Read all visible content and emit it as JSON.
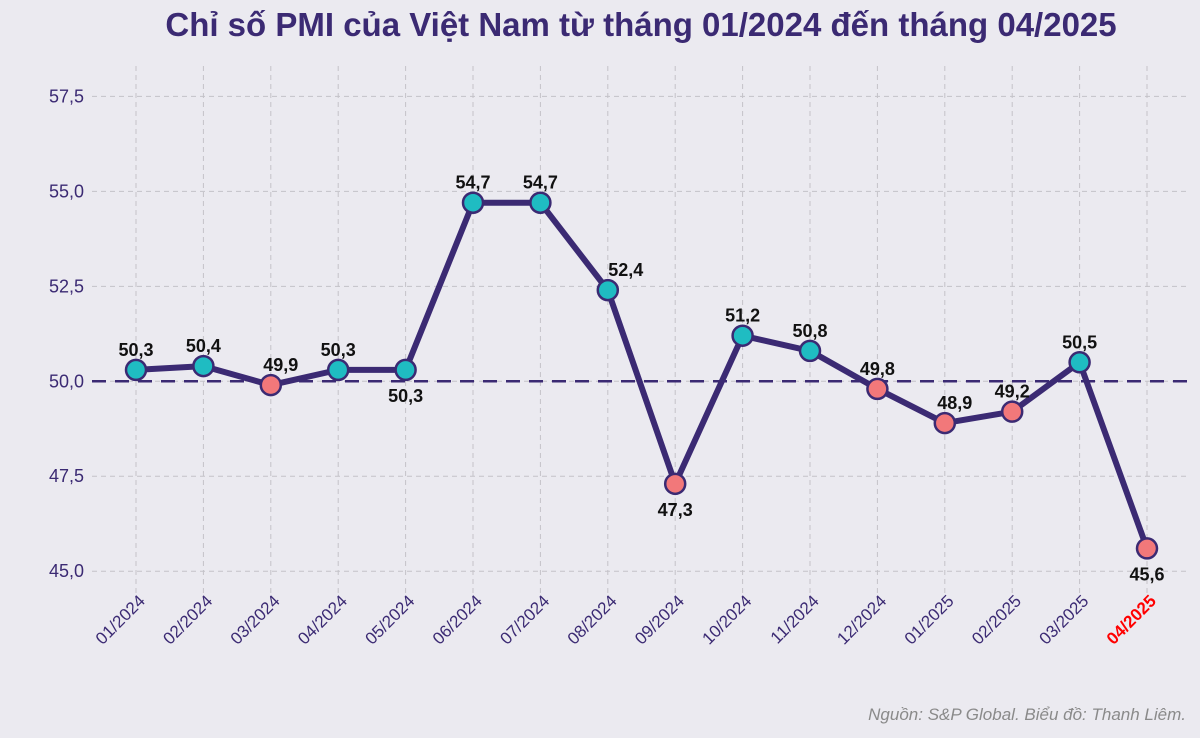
{
  "chart_data": {
    "type": "line",
    "title": "Chỉ số PMI của Việt Nam từ tháng 01/2024 đến tháng 04/2025",
    "categories": [
      "01/2024",
      "02/2024",
      "03/2024",
      "04/2024",
      "05/2024",
      "06/2024",
      "07/2024",
      "08/2024",
      "09/2024",
      "10/2024",
      "11/2024",
      "12/2024",
      "01/2025",
      "02/2025",
      "03/2025",
      "04/2025"
    ],
    "values": [
      50.3,
      50.4,
      49.9,
      50.3,
      50.3,
      54.7,
      54.7,
      52.4,
      47.3,
      51.2,
      50.8,
      49.8,
      48.9,
      49.2,
      50.5,
      45.6
    ],
    "value_labels": [
      "50,3",
      "50,4",
      "49,9",
      "50,3",
      "50,3",
      "54,7",
      "54,7",
      "52,4",
      "47,3",
      "51,2",
      "50,8",
      "49,8",
      "48,9",
      "49,2",
      "50,5",
      "45,6"
    ],
    "ylim": [
      44.4,
      58.3
    ],
    "yticks": [
      45.0,
      47.5,
      50.0,
      52.5,
      55.0,
      57.5
    ],
    "ytick_labels": [
      "45,0",
      "47,5",
      "50,0",
      "52,5",
      "55,0",
      "57,5"
    ],
    "threshold": 50.0,
    "highlighted_category": "04/2025",
    "grid": true,
    "xlabel": "",
    "ylabel": "",
    "source": "Nguồn: S&P Global. Biểu đồ: Thanh Liêm."
  },
  "colors": {
    "background": "#ebeaf0",
    "line": "#3b2a73",
    "above_threshold": "#1fbcc2",
    "below_threshold": "#f2787a",
    "highlight_text": "#ff0000"
  }
}
